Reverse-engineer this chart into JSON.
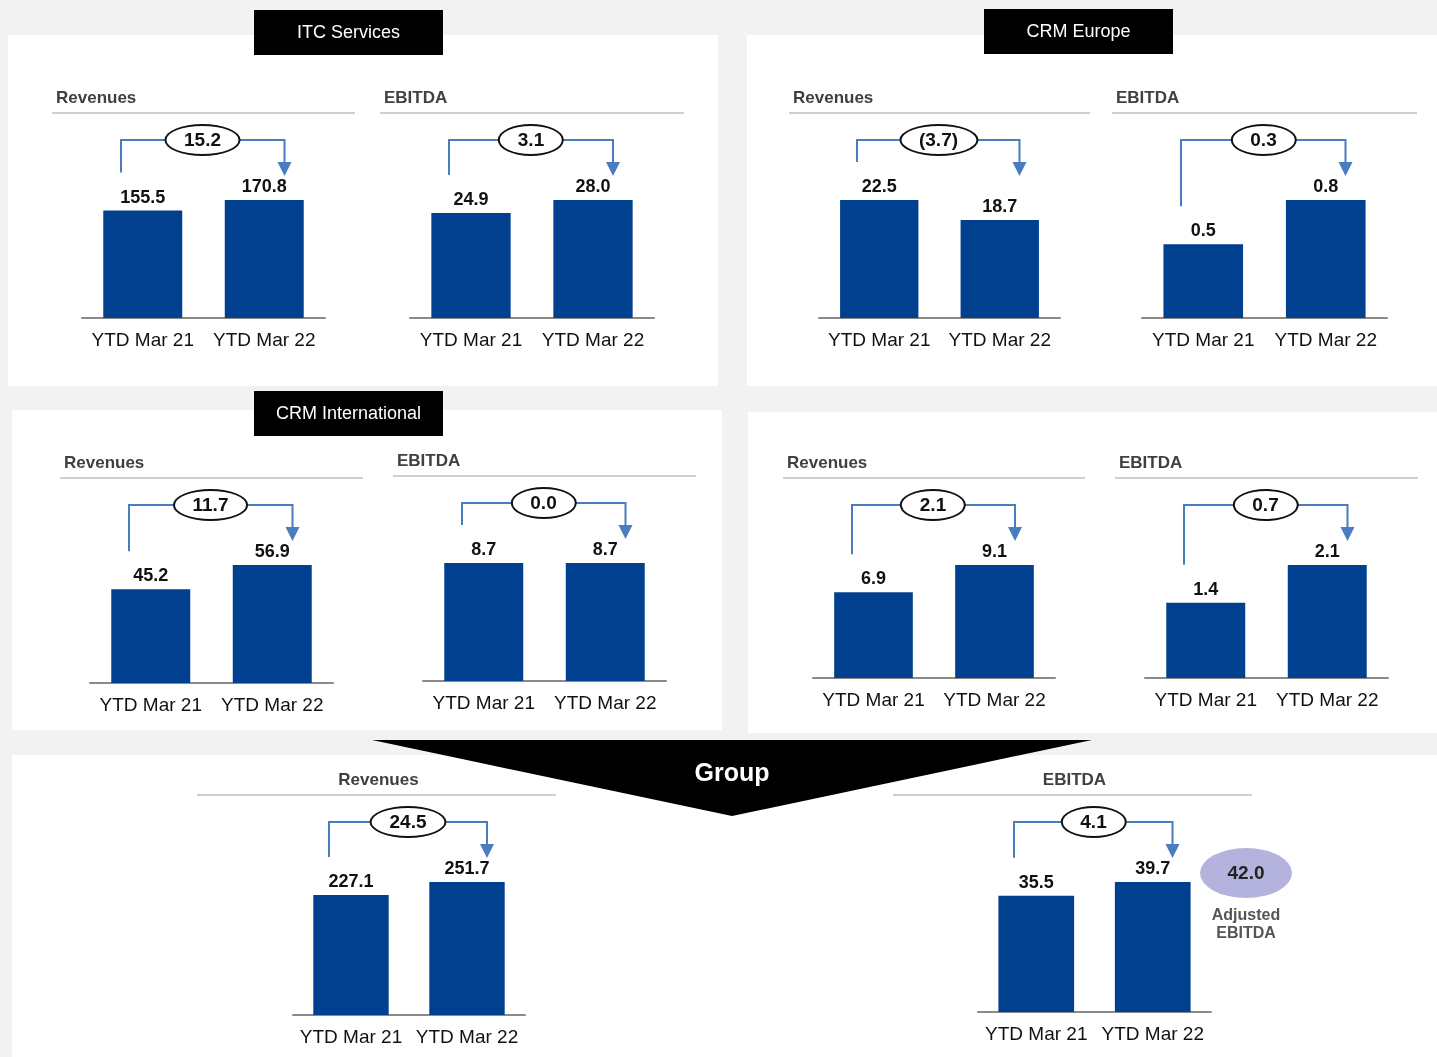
{
  "chart_data": [
    {
      "type": "other",
      "title": "ITC Services"
    },
    {
      "type": "bar",
      "title": "Revenues",
      "categories": [
        "YTD Mar 21",
        "YTD Mar 22"
      ],
      "values": [
        155.5,
        170.8
      ],
      "value_labels": [
        "155.5",
        "170.8"
      ],
      "color": "#00408f",
      "annotations": [
        "15.2"
      ]
    },
    {
      "type": "bar",
      "title": "EBITDA",
      "categories": [
        "YTD Mar 21",
        "YTD Mar 22"
      ],
      "values": [
        24.9,
        28.0
      ],
      "value_labels": [
        "24.9",
        "28.0"
      ],
      "color": "#00408f",
      "annotations": [
        "3.1"
      ]
    },
    {
      "type": "other",
      "title": "CRM Europe"
    },
    {
      "type": "bar",
      "title": "Revenues",
      "categories": [
        "YTD Mar 21",
        "YTD Mar 22"
      ],
      "values": [
        22.5,
        18.7
      ],
      "value_labels": [
        "22.5",
        "18.7"
      ],
      "color": "#00408f",
      "annotations": [
        "(3.7)"
      ]
    },
    {
      "type": "bar",
      "title": "EBITDA",
      "categories": [
        "YTD Mar 21",
        "YTD Mar 22"
      ],
      "values": [
        0.5,
        0.8
      ],
      "value_labels": [
        "0.5",
        "0.8"
      ],
      "color": "#00408f",
      "annotations": [
        "0.3"
      ]
    },
    {
      "type": "other",
      "title": "CRM International"
    },
    {
      "type": "bar",
      "title": "Revenues",
      "categories": [
        "YTD Mar 21",
        "YTD Mar 22"
      ],
      "values": [
        45.2,
        56.9
      ],
      "value_labels": [
        "45.2",
        "56.9"
      ],
      "color": "#00408f",
      "annotations": [
        "11.7"
      ]
    },
    {
      "type": "bar",
      "title": "EBITDA",
      "categories": [
        "YTD Mar 21",
        "YTD Mar 22"
      ],
      "values": [
        8.7,
        8.7
      ],
      "value_labels": [
        "8.7",
        "8.7"
      ],
      "color": "#00408f",
      "annotations": [
        "0.0"
      ]
    },
    {
      "type": "bar",
      "title": "Revenues",
      "categories": [
        "YTD Mar 21",
        "YTD Mar 22"
      ],
      "values": [
        6.9,
        9.1
      ],
      "value_labels": [
        "6.9",
        "9.1"
      ],
      "color": "#00408f",
      "annotations": [
        "2.1"
      ]
    },
    {
      "type": "bar",
      "title": "EBITDA",
      "categories": [
        "YTD Mar 21",
        "YTD Mar 22"
      ],
      "values": [
        1.4,
        2.1
      ],
      "value_labels": [
        "1.4",
        "2.1"
      ],
      "color": "#00408f",
      "annotations": [
        "0.7"
      ]
    },
    {
      "type": "other",
      "title": "Group"
    },
    {
      "type": "bar",
      "title": "Revenues",
      "categories": [
        "YTD Mar 21",
        "YTD Mar 22"
      ],
      "values": [
        227.1,
        251.7
      ],
      "value_labels": [
        "227.1",
        "251.7"
      ],
      "color": "#00408f",
      "annotations": [
        "24.5"
      ]
    },
    {
      "type": "bar",
      "title": "EBITDA",
      "categories": [
        "YTD Mar 21",
        "YTD Mar 22"
      ],
      "values": [
        35.5,
        39.7
      ],
      "value_labels": [
        "35.5",
        "39.7"
      ],
      "color": "#00408f",
      "annotations": [
        "4.1",
        "42.0",
        "Adjusted EBITDA"
      ]
    }
  ]
}
